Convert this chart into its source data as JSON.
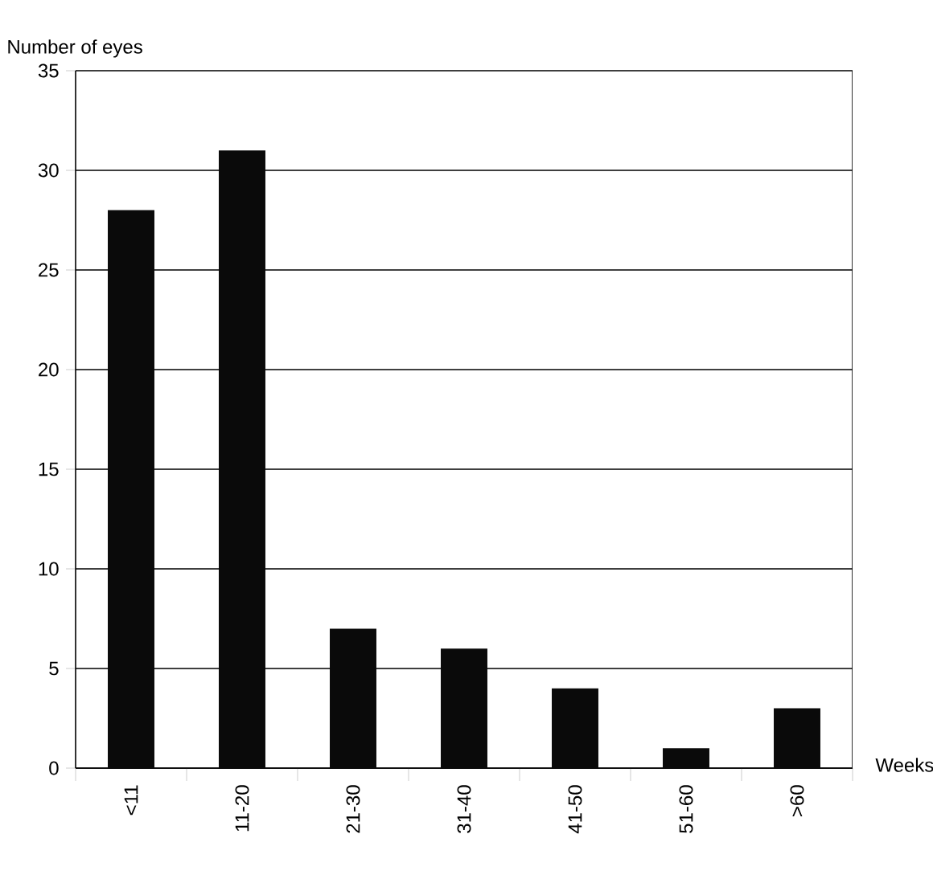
{
  "chart_data": {
    "type": "bar",
    "xlabel": "Weeks",
    "ylabel": "Number of eyes",
    "categories": [
      "<11",
      "11-20",
      "21-30",
      "31-40",
      "41-50",
      "51-60",
      ">60"
    ],
    "values": [
      28,
      31,
      7,
      6,
      4,
      1,
      3
    ],
    "color": "#0a0a0a",
    "ylim": [
      0,
      35
    ],
    "yticks": [
      0,
      5,
      10,
      15,
      20,
      25,
      30,
      35
    ],
    "grid": "y"
  }
}
